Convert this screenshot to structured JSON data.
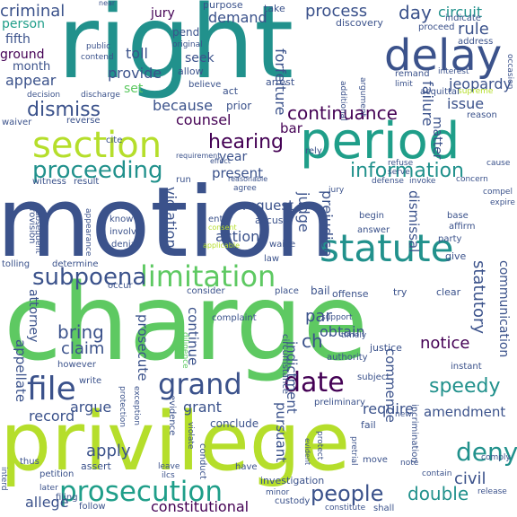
{
  "palette": {
    "dark_purple": "#440154",
    "indigo": "#3b528b",
    "teal_blue": "#21918c",
    "teal": "#1f9e89",
    "green": "#5ec962",
    "lime": "#b5de2b",
    "yellow": "#fde725"
  },
  "words": {
    "motion": "motion",
    "charge": "charge",
    "right": "right",
    "privilege": "privilege",
    "period": "period",
    "section": "section",
    "delay": "delay",
    "statute": "statute",
    "limitation": "limitation",
    "prosecution": "prosecution",
    "proceeding": "proceeding",
    "grand": "grand",
    "file": "file",
    "date": "date",
    "information": "information",
    "subpoena": "subpoena",
    "speedy": "speedy",
    "people": "people",
    "hearing": "hearing",
    "continuance": "continuance",
    "dismiss": "dismiss",
    "criminal": "criminal",
    "demand": "demand",
    "process": "process",
    "circuit": "circuit",
    "rule": "rule",
    "day": "day",
    "jeopardy": "jeopardy",
    "counsel": "counsel",
    "because": "because",
    "provide": "provide",
    "appear": "appear",
    "issue": "issue",
    "request": "request",
    "judge": "judge",
    "prejudice": "prejudice",
    "action": "action",
    "violation": "violation",
    "present": "present",
    "year": "year",
    "dismissal": "dismissal",
    "statutory": "statutory",
    "communication": "communication",
    "notice": "notice",
    "commence": "commence",
    "amendment": "amendment",
    "require": "require",
    "deny": "deny",
    "double": "double",
    "civil": "civil",
    "constitutional": "constitutional",
    "pursuant": "pursuant",
    "indictment": "indictment",
    "obtain": "obtain",
    "ch": "ch",
    "par": "par",
    "bring": "bring",
    "claim": "claim",
    "prosecute": "prosecute",
    "continue": "continue",
    "grant": "grant",
    "argue": "argue",
    "record": "record",
    "apply": "apply",
    "appellate": "appellate",
    "attorney": "attorney",
    "allege": "allege",
    "person": "person",
    "fifth": "fifth",
    "ground": "ground",
    "month": "month",
    "jury": "jury",
    "toll": "toll",
    "seek": "seek",
    "set": "set",
    "forfeiture": "forfeiture",
    "failure": "failure",
    "matter": "matter",
    "bar": "bar",
    "pend": "pend",
    "purpose": "purpose",
    "take": "take",
    "discovery": "discovery",
    "indicate": "indicate",
    "proceed": "proceed",
    "address": "address",
    "interest": "interest",
    "supreme": "supreme",
    "reason": "reason",
    "acquittal": "acquittal",
    "remand": "remand",
    "limit": "limit",
    "arrest": "arrest",
    "additional": "additional",
    "argument": "argument",
    "believe": "believe",
    "allow": "allow",
    "act": "act",
    "prior": "prior",
    "public": "public",
    "original": "original",
    "contend": "contend",
    "decision": "decision",
    "discharge": "discharge",
    "waiver": "waiver",
    "reverse": "reverse",
    "cite": "cite",
    "witness": "witness",
    "result": "result",
    "subsequent": "subsequent",
    "provision": "provision",
    "determine": "determine",
    "tolling": "tolling",
    "appearance": "appearance",
    "know": "know",
    "involve": "involve",
    "denial": "denial",
    "enter": "enter",
    "accuse": "accuse",
    "waive": "waive",
    "law": "law",
    "applicable": "applicable",
    "occur": "occur",
    "consider": "consider",
    "place": "place",
    "bail": "bail",
    "offense": "offense",
    "try": "try",
    "clear": "clear",
    "complaint": "complaint",
    "support": "support",
    "timely": "timely",
    "justice": "justice",
    "circumstance": "circumstance",
    "authority": "authority",
    "subject": "subject",
    "instant": "instant",
    "preliminary": "preliminary",
    "conclude": "conclude",
    "however": "however",
    "write": "write",
    "protection": "protection",
    "exception": "exception",
    "evidence": "evidence",
    "diligence": "diligence",
    "violate": "violate",
    "conduct": "conduct",
    "protect": "protect",
    "pretrial": "pretrial",
    "fail": "fail",
    "incrimination": "incrimination",
    "new": "new",
    "assert": "assert",
    "petition": "petition",
    "thus": "thus",
    "later": "later",
    "interd": "interd",
    "filing": "filing",
    "follow": "follow",
    "leave": "leave",
    "ilcs": "ilcs",
    "have": "have",
    "investigation": "investigation",
    "minor": "minor",
    "custody": "custody",
    "constitute": "constitute",
    "shall": "shall",
    "move": "move",
    "note": "note",
    "contain": "contain",
    "comply": "comply",
    "release": "release",
    "refuse": "refuse",
    "serve": "serve",
    "rely": "rely",
    "defense": "defense",
    "invoke": "invoke",
    "concern": "concern",
    "cause": "cause",
    "compel": "compel",
    "expire": "expire",
    "base": "base",
    "affirm": "affirm",
    "party": "party",
    "give": "give",
    "begin": "begin",
    "answer": "answer",
    "requirement": "requirement",
    "reasonable": "reasonable",
    "agree": "agree",
    "run": "run",
    "effect": "effect",
    "occasion": "occasion",
    "near": "near",
    "jury2": "jury",
    "consent": "consent",
    "evident": "evident"
  }
}
